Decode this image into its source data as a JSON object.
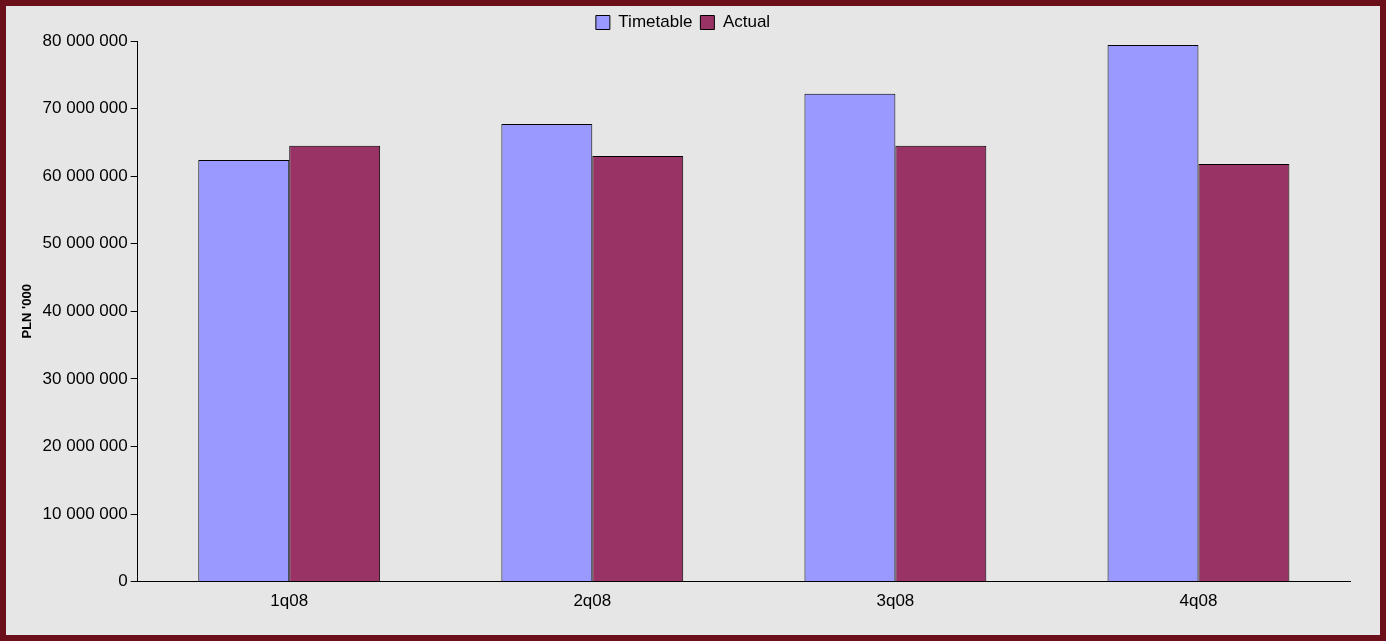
{
  "chart_data": {
    "type": "bar",
    "ylabel": "PLN '000",
    "categories": [
      "1q08",
      "2q08",
      "3q08",
      "4q08"
    ],
    "series": [
      {
        "name": "Timetable",
        "color": "#9999ff",
        "values": [
          62400000,
          67700000,
          72200000,
          79400000
        ]
      },
      {
        "name": "Actual",
        "color": "#993366",
        "values": [
          64500000,
          63000000,
          64500000,
          61800000
        ]
      }
    ],
    "ylim": [
      0,
      80000000
    ],
    "yticks": [
      {
        "value": 0,
        "label": "0"
      },
      {
        "value": 10000000,
        "label": "10 000 000"
      },
      {
        "value": 20000000,
        "label": "20 000 000"
      },
      {
        "value": 30000000,
        "label": "30 000 000"
      },
      {
        "value": 40000000,
        "label": "40 000 000"
      },
      {
        "value": 50000000,
        "label": "50 000 000"
      },
      {
        "value": 60000000,
        "label": "60 000 000"
      },
      {
        "value": 70000000,
        "label": "70 000 000"
      },
      {
        "value": 80000000,
        "label": "80 000 000"
      }
    ],
    "grid": false,
    "legend": "top"
  }
}
